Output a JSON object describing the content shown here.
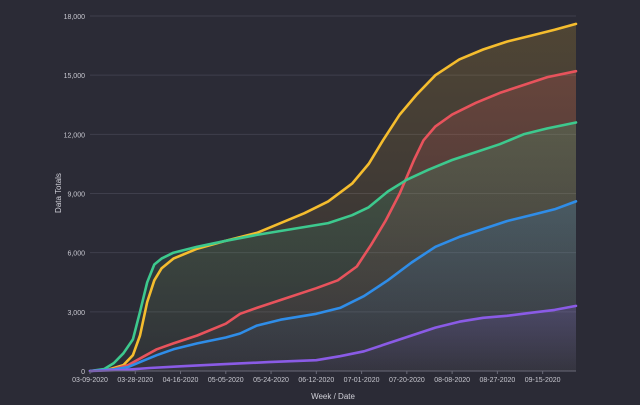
{
  "chart_data": {
    "type": "line",
    "title": "",
    "xlabel": "Week / Date",
    "ylabel": "Data Totals",
    "ylim": [
      0,
      18000
    ],
    "y_ticks": [
      0,
      3000,
      6000,
      9000,
      12000,
      15000,
      18000
    ],
    "y_tick_labels": [
      "0",
      "3,000",
      "6,000",
      "9,000",
      "12,000",
      "15,000",
      "18,000"
    ],
    "x_range_days": [
      0,
      204
    ],
    "x_ticks": [
      {
        "label": "03-09-2020",
        "day": 0
      },
      {
        "label": "03-28-2020",
        "day": 19
      },
      {
        "label": "04-16-2020",
        "day": 38
      },
      {
        "label": "05-05-2020",
        "day": 57
      },
      {
        "label": "05-24-2020",
        "day": 76
      },
      {
        "label": "06-12-2020",
        "day": 95
      },
      {
        "label": "07-01-2020",
        "day": 114
      },
      {
        "label": "07-20-2020",
        "day": 133
      },
      {
        "label": "08-08-2020",
        "day": 152
      },
      {
        "label": "08-27-2020",
        "day": 171
      },
      {
        "label": "09-15-2020",
        "day": 190
      }
    ],
    "grid": true,
    "legend": "none",
    "series": [
      {
        "name": "yellow",
        "color": "#f5bd2e",
        "points": [
          [
            0,
            0
          ],
          [
            8,
            80
          ],
          [
            14,
            300
          ],
          [
            18,
            800
          ],
          [
            21,
            1800
          ],
          [
            24,
            3500
          ],
          [
            27,
            4600
          ],
          [
            30,
            5200
          ],
          [
            35,
            5700
          ],
          [
            45,
            6200
          ],
          [
            57,
            6600
          ],
          [
            70,
            7000
          ],
          [
            80,
            7500
          ],
          [
            90,
            8000
          ],
          [
            100,
            8600
          ],
          [
            110,
            9500
          ],
          [
            117,
            10500
          ],
          [
            123,
            11700
          ],
          [
            130,
            13000
          ],
          [
            137,
            14000
          ],
          [
            145,
            15000
          ],
          [
            155,
            15800
          ],
          [
            165,
            16300
          ],
          [
            175,
            16700
          ],
          [
            185,
            17000
          ],
          [
            195,
            17300
          ],
          [
            204,
            17600
          ]
        ]
      },
      {
        "name": "red",
        "color": "#e8535c",
        "points": [
          [
            0,
            0
          ],
          [
            10,
            100
          ],
          [
            16,
            300
          ],
          [
            22,
            700
          ],
          [
            28,
            1100
          ],
          [
            35,
            1400
          ],
          [
            45,
            1800
          ],
          [
            57,
            2400
          ],
          [
            63,
            2900
          ],
          [
            70,
            3200
          ],
          [
            80,
            3600
          ],
          [
            95,
            4200
          ],
          [
            104,
            4600
          ],
          [
            112,
            5300
          ],
          [
            118,
            6400
          ],
          [
            124,
            7600
          ],
          [
            130,
            9000
          ],
          [
            136,
            10700
          ],
          [
            140,
            11700
          ],
          [
            145,
            12400
          ],
          [
            152,
            13000
          ],
          [
            162,
            13600
          ],
          [
            172,
            14100
          ],
          [
            182,
            14500
          ],
          [
            192,
            14900
          ],
          [
            204,
            15200
          ]
        ]
      },
      {
        "name": "green",
        "color": "#3dc98e",
        "points": [
          [
            0,
            0
          ],
          [
            6,
            100
          ],
          [
            10,
            400
          ],
          [
            14,
            900
          ],
          [
            18,
            1600
          ],
          [
            21,
            3000
          ],
          [
            24,
            4500
          ],
          [
            27,
            5400
          ],
          [
            30,
            5700
          ],
          [
            35,
            6000
          ],
          [
            45,
            6300
          ],
          [
            57,
            6600
          ],
          [
            70,
            6900
          ],
          [
            85,
            7200
          ],
          [
            100,
            7500
          ],
          [
            110,
            7900
          ],
          [
            117,
            8300
          ],
          [
            125,
            9100
          ],
          [
            133,
            9700
          ],
          [
            142,
            10200
          ],
          [
            152,
            10700
          ],
          [
            162,
            11100
          ],
          [
            172,
            11500
          ],
          [
            182,
            12000
          ],
          [
            192,
            12300
          ],
          [
            204,
            12600
          ]
        ]
      },
      {
        "name": "blue",
        "color": "#2f8de8",
        "points": [
          [
            0,
            0
          ],
          [
            10,
            80
          ],
          [
            16,
            200
          ],
          [
            22,
            500
          ],
          [
            28,
            800
          ],
          [
            35,
            1100
          ],
          [
            45,
            1400
          ],
          [
            57,
            1700
          ],
          [
            63,
            1900
          ],
          [
            70,
            2300
          ],
          [
            80,
            2600
          ],
          [
            95,
            2900
          ],
          [
            105,
            3200
          ],
          [
            115,
            3800
          ],
          [
            125,
            4600
          ],
          [
            135,
            5500
          ],
          [
            145,
            6300
          ],
          [
            155,
            6800
          ],
          [
            165,
            7200
          ],
          [
            175,
            7600
          ],
          [
            185,
            7900
          ],
          [
            195,
            8200
          ],
          [
            204,
            8600
          ]
        ]
      },
      {
        "name": "purple",
        "color": "#8a5be6",
        "points": [
          [
            0,
            0
          ],
          [
            14,
            50
          ],
          [
            25,
            150
          ],
          [
            40,
            250
          ],
          [
            57,
            350
          ],
          [
            75,
            450
          ],
          [
            95,
            550
          ],
          [
            105,
            750
          ],
          [
            115,
            1000
          ],
          [
            125,
            1400
          ],
          [
            135,
            1800
          ],
          [
            145,
            2200
          ],
          [
            155,
            2500
          ],
          [
            165,
            2700
          ],
          [
            175,
            2800
          ],
          [
            185,
            2950
          ],
          [
            195,
            3100
          ],
          [
            204,
            3300
          ]
        ]
      }
    ]
  }
}
